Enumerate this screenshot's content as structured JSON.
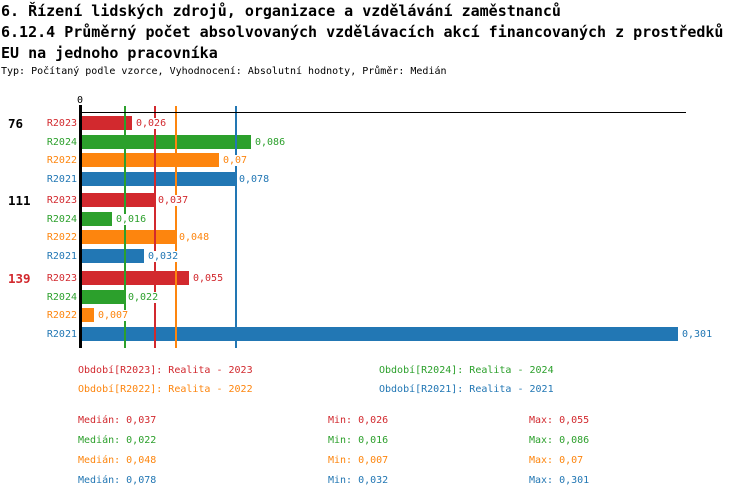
{
  "header": {
    "title_line1": "6. Řízení lidských zdrojů, organizace a vzdělávání zaměstnanců",
    "title_line2": "6.12.4 Průměrný počet absolvovaných vzdělávacích akcí financovaných z prostředků",
    "title_line3": "EU na jednoho pracovníka",
    "subtitle": "Typ: Počítaný podle vzorce, Vyhodnocení: Absolutní hodnoty, Průměr: Medián"
  },
  "colors": {
    "R2023": "#d2292e",
    "R2024": "#2ca02c",
    "R2022": "#fd850e",
    "R2021": "#2277b4",
    "axis": "#000000",
    "group_label_default": "#000000",
    "group_label_highlight": "#d2292e"
  },
  "chart_data": {
    "type": "bar",
    "orientation": "horizontal",
    "x_axis": {
      "zero_label": "0",
      "xlim": [
        0,
        0.305
      ],
      "gridlines": false
    },
    "series_order": [
      "R2023",
      "R2024",
      "R2022",
      "R2021"
    ],
    "groups": [
      {
        "label": "76",
        "highlight": false,
        "bars": [
          {
            "series": "R2023",
            "value": 0.026,
            "display": "0,026"
          },
          {
            "series": "R2024",
            "value": 0.086,
            "display": "0,086"
          },
          {
            "series": "R2022",
            "value": 0.07,
            "display": "0,07"
          },
          {
            "series": "R2021",
            "value": 0.078,
            "display": "0,078"
          }
        ]
      },
      {
        "label": "111",
        "highlight": false,
        "bars": [
          {
            "series": "R2023",
            "value": 0.037,
            "display": "0,037"
          },
          {
            "series": "R2024",
            "value": 0.016,
            "display": "0,016"
          },
          {
            "series": "R2022",
            "value": 0.048,
            "display": "0,048"
          },
          {
            "series": "R2021",
            "value": 0.032,
            "display": "0,032"
          }
        ]
      },
      {
        "label": "139",
        "highlight": true,
        "bars": [
          {
            "series": "R2023",
            "value": 0.055,
            "display": "0,055"
          },
          {
            "series": "R2024",
            "value": 0.022,
            "display": "0,022"
          },
          {
            "series": "R2022",
            "value": 0.007,
            "display": "0,007"
          },
          {
            "series": "R2021",
            "value": 0.301,
            "display": "0,301"
          }
        ]
      }
    ],
    "median_lines": {
      "R2023": 0.037,
      "R2024": 0.022,
      "R2022": 0.048,
      "R2021": 0.078
    },
    "summary": [
      {
        "series": "R2023",
        "median": 0.037,
        "min": 0.026,
        "max": 0.055
      },
      {
        "series": "R2024",
        "median": 0.022,
        "min": 0.016,
        "max": 0.086
      },
      {
        "series": "R2022",
        "median": 0.048,
        "min": 0.007,
        "max": 0.07
      },
      {
        "series": "R2021",
        "median": 0.078,
        "min": 0.032,
        "max": 0.301
      }
    ]
  },
  "legend": {
    "items": [
      {
        "series": "R2023",
        "label": "Období[R2023]: Realita - 2023"
      },
      {
        "series": "R2024",
        "label": "Období[R2024]: Realita - 2024"
      },
      {
        "series": "R2022",
        "label": "Období[R2022]: Realita - 2022"
      },
      {
        "series": "R2021",
        "label": "Období[R2021]: Realita - 2021"
      }
    ]
  },
  "stats": {
    "rows": [
      {
        "series": "R2023",
        "median": "Medián: 0,037",
        "min": "Min: 0,026",
        "max": "Max: 0,055"
      },
      {
        "series": "R2024",
        "median": "Medián: 0,022",
        "min": "Min: 0,016",
        "max": "Max: 0,086"
      },
      {
        "series": "R2022",
        "median": "Medián: 0,048",
        "min": "Min: 0,007",
        "max": "Max: 0,07"
      },
      {
        "series": "R2021",
        "median": "Medián: 0,078",
        "min": "Min: 0,032",
        "max": "Max: 0,301"
      }
    ]
  }
}
